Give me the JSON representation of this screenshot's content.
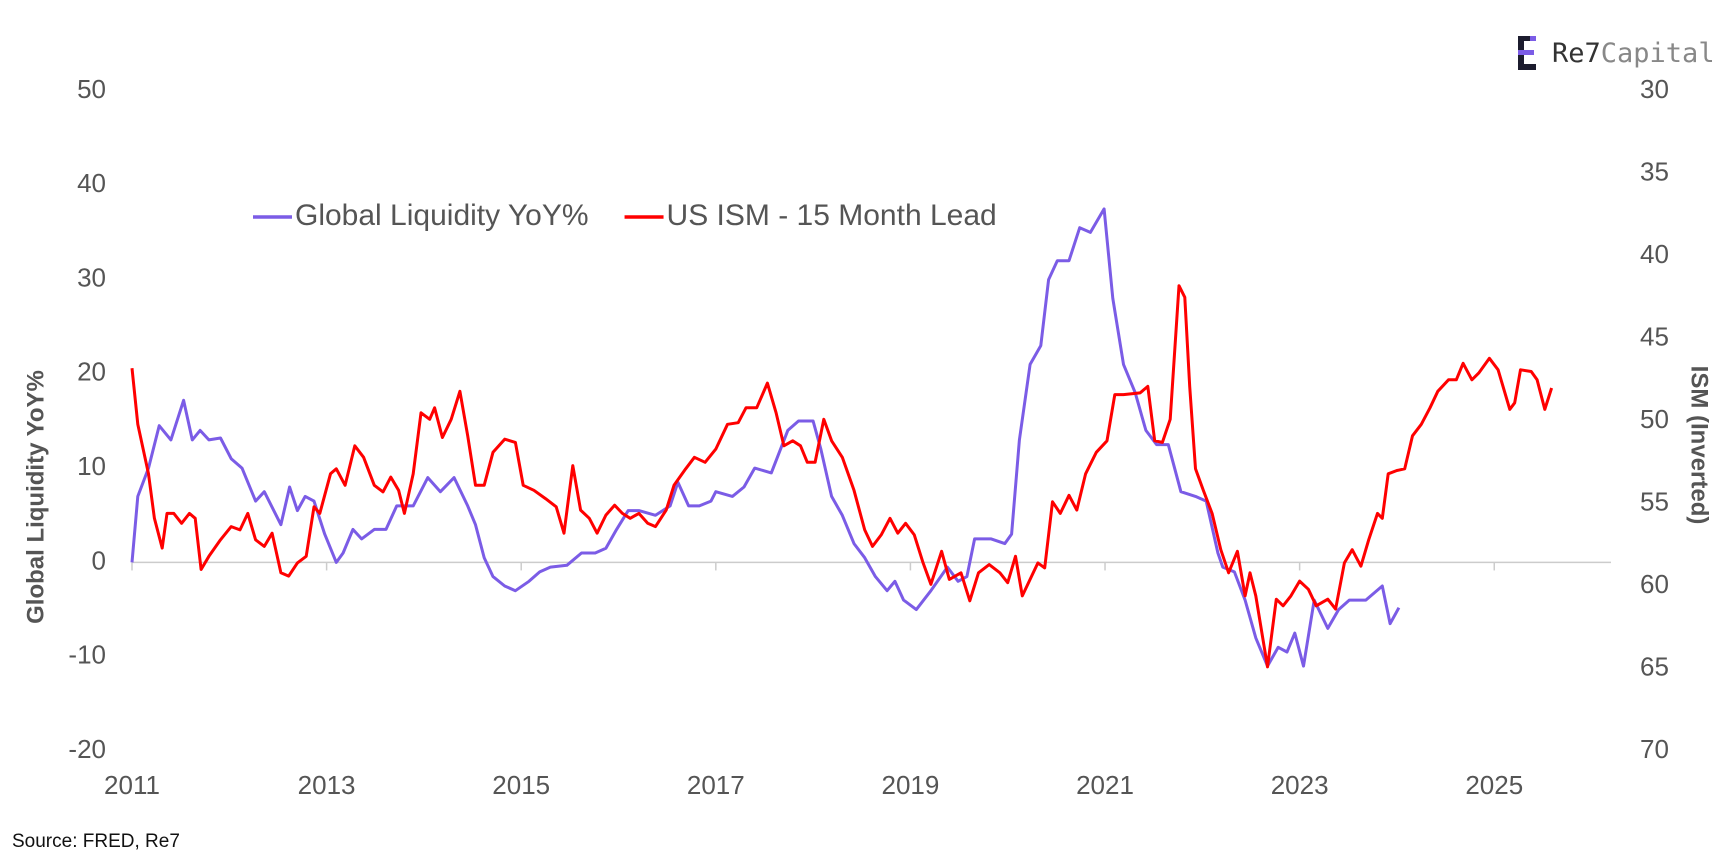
{
  "chart_data": {
    "type": "line",
    "y_label": "Global Liquidity YoY%",
    "y2_label": "ISM (Inverted)",
    "source": "Source: FRED, Re7",
    "logo": {
      "first": "Re7",
      "second": "Capital"
    },
    "xlim": [
      2011,
      2026.2
    ],
    "xticks": [
      2011,
      2013,
      2015,
      2017,
      2019,
      2021,
      2023,
      2025
    ],
    "ylim": [
      -20,
      50
    ],
    "yticks": [
      -20,
      -10,
      0,
      10,
      20,
      30,
      40,
      50
    ],
    "y2lim": [
      70,
      30
    ],
    "y2ticks": [
      30,
      35,
      40,
      45,
      50,
      55,
      60,
      65,
      70
    ],
    "grid": false,
    "legend": "upper left",
    "series": [
      {
        "name": "Global Liquidity YoY%",
        "color": "#7b5ce6",
        "axis": "y",
        "x": [
          2011.0,
          2011.06,
          2011.17,
          2011.28,
          2011.4,
          2011.53,
          2011.62,
          2011.7,
          2011.79,
          2011.91,
          2012.02,
          2012.13,
          2012.27,
          2012.36,
          2012.53,
          2012.62,
          2012.7,
          2012.78,
          2012.87,
          2012.98,
          2013.1,
          2013.17,
          2013.27,
          2013.36,
          2013.49,
          2013.61,
          2013.72,
          2013.89,
          2014.04,
          2014.17,
          2014.31,
          2014.45,
          2014.53,
          2014.62,
          2014.71,
          2014.83,
          2014.94,
          2015.08,
          2015.19,
          2015.3,
          2015.47,
          2015.62,
          2015.76,
          2015.87,
          2015.98,
          2016.1,
          2016.21,
          2016.38,
          2016.53,
          2016.61,
          2016.72,
          2016.83,
          2016.95,
          2017.0,
          2017.17,
          2017.29,
          2017.4,
          2017.57,
          2017.74,
          2017.85,
          2018.0,
          2018.08,
          2018.19,
          2018.3,
          2018.42,
          2018.53,
          2018.64,
          2018.76,
          2018.84,
          2018.93,
          2019.06,
          2019.21,
          2019.38,
          2019.49,
          2019.58,
          2019.66,
          2019.83,
          2019.97,
          2020.04,
          2020.12,
          2020.23,
          2020.34,
          2020.42,
          2020.51,
          2020.63,
          2020.74,
          2020.85,
          2020.99,
          2021.08,
          2021.19,
          2021.31,
          2021.42,
          2021.53,
          2021.65,
          2021.78,
          2021.93,
          2022.04,
          2022.16,
          2022.21,
          2022.33,
          2022.44,
          2022.55,
          2022.67,
          2022.78,
          2022.87,
          2022.95,
          2023.04,
          2023.15,
          2023.29,
          2023.4,
          2023.51,
          2023.68,
          2023.85,
          2023.93,
          2024.02
        ],
        "values": [
          0,
          7,
          10,
          14.5,
          13,
          17.2,
          13,
          14,
          13,
          13.2,
          11,
          10,
          6.5,
          7.5,
          4,
          8,
          5.5,
          7,
          6.5,
          3,
          0,
          1,
          3.5,
          2.5,
          3.5,
          3.5,
          6,
          6,
          9,
          7.5,
          9,
          6,
          4,
          0.5,
          -1.5,
          -2.5,
          -3,
          -2,
          -1,
          -0.5,
          -0.3,
          1,
          1,
          1.5,
          3.5,
          5.5,
          5.5,
          5,
          6,
          8.5,
          6,
          6,
          6.5,
          7.5,
          7,
          8,
          10,
          9.5,
          14,
          15,
          15,
          12,
          7,
          5,
          2,
          0.5,
          -1.5,
          -3,
          -2,
          -4,
          -5,
          -3,
          -0.5,
          -2,
          -1.5,
          2.5,
          2.5,
          2,
          3,
          13,
          21,
          23,
          30,
          32,
          32,
          35.5,
          35,
          37.5,
          28,
          21,
          18,
          14,
          12.5,
          12.5,
          7.5,
          7,
          6.5,
          1,
          -0.5,
          -1,
          -4,
          -8,
          -11,
          -9,
          -9.5,
          -7.5,
          -11,
          -4,
          -7,
          -5,
          -4,
          -4,
          -2.5,
          -6.5,
          -4.8
        ]
      },
      {
        "name": "US ISM - 15 Month Lead",
        "color": "#ff0000",
        "axis": "y2",
        "x": [
          2011.0,
          2011.06,
          2011.17,
          2011.23,
          2011.31,
          2011.36,
          2011.43,
          2011.51,
          2011.59,
          2011.65,
          2011.71,
          2011.79,
          2011.91,
          2012.02,
          2012.11,
          2012.19,
          2012.27,
          2012.36,
          2012.44,
          2012.53,
          2012.61,
          2012.7,
          2012.79,
          2012.87,
          2012.93,
          2013.04,
          2013.1,
          2013.19,
          2013.29,
          2013.38,
          2013.49,
          2013.58,
          2013.66,
          2013.74,
          2013.8,
          2013.89,
          2013.97,
          2014.06,
          2014.11,
          2014.19,
          2014.28,
          2014.37,
          2014.45,
          2014.53,
          2014.62,
          2014.71,
          2014.83,
          2014.94,
          2015.02,
          2015.13,
          2015.25,
          2015.36,
          2015.44,
          2015.53,
          2015.61,
          2015.7,
          2015.78,
          2015.87,
          2015.96,
          2016.04,
          2016.12,
          2016.21,
          2016.3,
          2016.38,
          2016.49,
          2016.57,
          2016.69,
          2016.78,
          2016.89,
          2017.0,
          2017.12,
          2017.23,
          2017.31,
          2017.42,
          2017.53,
          2017.62,
          2017.7,
          2017.79,
          2017.87,
          2017.94,
          2018.02,
          2018.11,
          2018.19,
          2018.3,
          2018.42,
          2018.53,
          2018.61,
          2018.7,
          2018.79,
          2018.87,
          2018.95,
          2019.04,
          2019.13,
          2019.21,
          2019.32,
          2019.4,
          2019.52,
          2019.61,
          2019.7,
          2019.81,
          2019.92,
          2020.0,
          2020.08,
          2020.15,
          2020.23,
          2020.31,
          2020.38,
          2020.46,
          2020.54,
          2020.63,
          2020.71,
          2020.8,
          2020.91,
          2021.02,
          2021.1,
          2021.19,
          2021.36,
          2021.44,
          2021.51,
          2021.59,
          2021.67,
          2021.76,
          2021.82,
          2021.87,
          2021.93,
          2022.01,
          2022.1,
          2022.19,
          2022.27,
          2022.36,
          2022.44,
          2022.49,
          2022.55,
          2022.67,
          2022.76,
          2022.83,
          2022.91,
          2023.0,
          2023.09,
          2023.17,
          2023.29,
          2023.37,
          2023.46,
          2023.54,
          2023.63,
          2023.71,
          2023.8,
          2023.85,
          2023.91,
          2024.0,
          2024.08,
          2024.16,
          2024.25,
          2024.34,
          2024.42,
          2024.53,
          2024.61,
          2024.68,
          2024.77,
          2024.84,
          2024.95,
          2025.04,
          2025.16,
          2025.21,
          2025.27,
          2025.38,
          2025.44,
          2025.52,
          2025.59
        ],
        "values": [
          46.8,
          50.2,
          53.2,
          55.9,
          57.7,
          55.6,
          55.6,
          56.2,
          55.6,
          55.9,
          59.0,
          58.2,
          57.2,
          56.4,
          56.6,
          55.6,
          57.2,
          57.6,
          56.8,
          59.2,
          59.4,
          58.6,
          58.2,
          55.2,
          55.6,
          53.2,
          52.9,
          53.9,
          51.5,
          52.2,
          53.9,
          54.3,
          53.4,
          54.2,
          55.6,
          53.2,
          49.5,
          49.9,
          49.2,
          51.0,
          49.9,
          48.2,
          50.9,
          53.9,
          53.9,
          51.9,
          51.1,
          51.3,
          53.9,
          54.2,
          54.7,
          55.2,
          56.8,
          52.7,
          55.4,
          55.9,
          56.8,
          55.7,
          55.1,
          55.6,
          55.9,
          55.6,
          56.2,
          56.4,
          55.4,
          53.9,
          52.9,
          52.2,
          52.5,
          51.7,
          50.2,
          50.1,
          49.2,
          49.2,
          47.7,
          49.5,
          51.5,
          51.2,
          51.5,
          52.5,
          52.5,
          49.9,
          51.2,
          52.2,
          54.2,
          56.6,
          57.6,
          56.9,
          55.9,
          56.8,
          56.2,
          56.9,
          58.6,
          59.9,
          57.9,
          59.6,
          59.2,
          60.9,
          59.2,
          58.7,
          59.2,
          59.8,
          58.2,
          60.6,
          59.6,
          58.6,
          58.9,
          54.9,
          55.6,
          54.5,
          55.4,
          53.2,
          51.9,
          51.2,
          48.4,
          48.4,
          48.3,
          47.9,
          51.2,
          51.3,
          49.9,
          41.8,
          42.5,
          47.9,
          52.9,
          54.2,
          55.6,
          57.8,
          59.2,
          57.9,
          60.6,
          59.2,
          60.6,
          64.9,
          60.8,
          61.2,
          60.6,
          59.7,
          60.2,
          61.2,
          60.8,
          61.4,
          58.6,
          57.8,
          58.8,
          57.2,
          55.6,
          55.9,
          53.2,
          53.0,
          52.9,
          50.9,
          50.2,
          49.2,
          48.2,
          47.5,
          47.5,
          46.5,
          47.5,
          47.1,
          46.2,
          46.9,
          49.3,
          48.9,
          46.9,
          47.0,
          47.5,
          49.3,
          48.0
        ]
      }
    ]
  }
}
